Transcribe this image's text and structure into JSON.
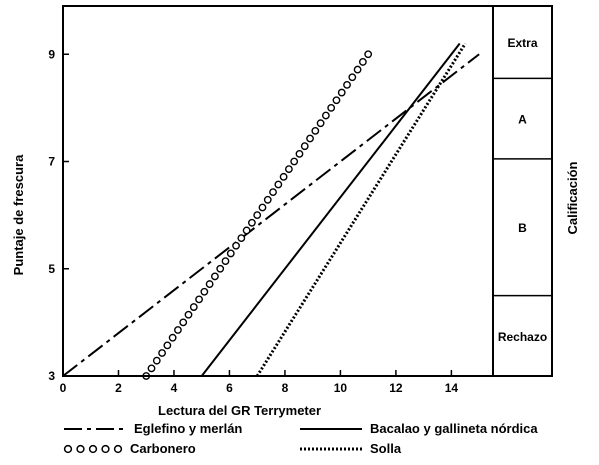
{
  "chart_data": {
    "type": "line",
    "title": "",
    "xlabel": "Lectura del GR Terrymeter",
    "ylabel": "Puntaje de frescura",
    "xlim": [
      0,
      15.5
    ],
    "ylim": [
      3,
      9.9
    ],
    "x_ticks": [
      0,
      2,
      4,
      6,
      8,
      10,
      12,
      14
    ],
    "y_ticks": [
      3,
      5,
      7,
      9
    ],
    "grade_axis_label": "Calificación",
    "grades": [
      {
        "label": "Extra",
        "from": 8.55,
        "to": 9.9
      },
      {
        "label": "A",
        "from": 7.05,
        "to": 8.55
      },
      {
        "label": "B",
        "from": 4.5,
        "to": 7.05
      },
      {
        "label": "Rechazo",
        "from": 3,
        "to": 4.5
      }
    ],
    "series": [
      {
        "name": "Eglefino y merlán",
        "style": "dash-dot",
        "x": [
          0,
          15
        ],
        "y": [
          3,
          9
        ]
      },
      {
        "name": "Bacalao y gallineta nórdica",
        "style": "solid",
        "x": [
          5,
          14.3
        ],
        "y": [
          3,
          9.2
        ]
      },
      {
        "name": "Carbonero",
        "style": "circles",
        "x": [
          3,
          11
        ],
        "y": [
          3,
          9
        ]
      },
      {
        "name": "Solla",
        "style": "dotted",
        "x": [
          7,
          14.5
        ],
        "y": [
          3,
          9.2
        ]
      }
    ]
  }
}
